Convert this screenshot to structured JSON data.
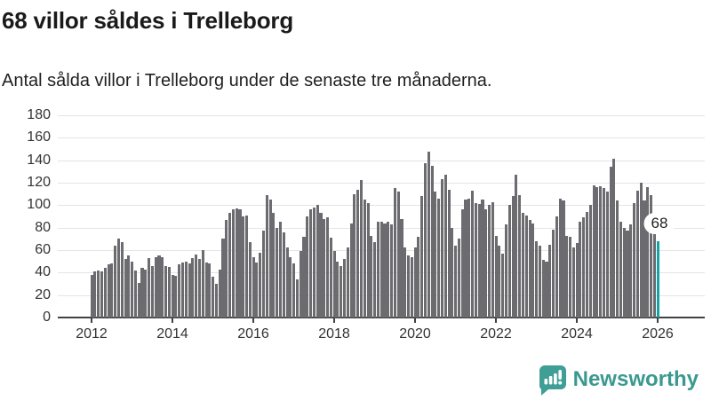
{
  "header": {
    "title": "68 villor såldes i Trelleborg",
    "subtitle": "Antal sålda villor i Trelleborg under de senaste tre månaderna."
  },
  "chart_data": {
    "type": "bar",
    "title": "68 villor såldes i Trelleborg",
    "subtitle": "Antal sålda villor i Trelleborg under de senaste tre månaderna.",
    "frequency": "monthly",
    "x_start": "2012-01",
    "x_end": "2026-01",
    "values": [
      38,
      41,
      42,
      41,
      44,
      47,
      48,
      64,
      70,
      67,
      52,
      55,
      50,
      42,
      31,
      44,
      43,
      53,
      46,
      54,
      55,
      54,
      46,
      45,
      38,
      37,
      47,
      49,
      50,
      48,
      53,
      56,
      52,
      60,
      49,
      48,
      36,
      30,
      43,
      70,
      87,
      93,
      96,
      97,
      96,
      90,
      91,
      67,
      54,
      49,
      58,
      77,
      109,
      105,
      93,
      80,
      85,
      76,
      62,
      54,
      48,
      34,
      59,
      72,
      90,
      96,
      98,
      100,
      93,
      88,
      89,
      71,
      59,
      50,
      46,
      52,
      62,
      84,
      110,
      114,
      122,
      105,
      102,
      73,
      67,
      85,
      85,
      84,
      85,
      83,
      115,
      112,
      88,
      62,
      55,
      54,
      62,
      72,
      108,
      137,
      148,
      135,
      112,
      106,
      123,
      127,
      114,
      80,
      64,
      70,
      96,
      105,
      106,
      113,
      102,
      101,
      105,
      96,
      100,
      103,
      73,
      64,
      57,
      83,
      100,
      108,
      127,
      109,
      93,
      91,
      87,
      84,
      68,
      64,
      51,
      50,
      65,
      78,
      90,
      106,
      104,
      73,
      72,
      62,
      66,
      85,
      89,
      94,
      100,
      118,
      116,
      117,
      115,
      112,
      134,
      141,
      104,
      85,
      80,
      77,
      83,
      102,
      113,
      120,
      104,
      116,
      109,
      88,
      68
    ],
    "highlight": {
      "index": 168,
      "value": 68,
      "label": "68"
    },
    "ylim": [
      0,
      180
    ],
    "yticks": [
      0,
      20,
      40,
      60,
      80,
      100,
      120,
      140,
      160,
      180
    ],
    "xticks": [
      2012,
      2014,
      2016,
      2018,
      2020,
      2022,
      2024,
      2026
    ],
    "grid": true,
    "legend": "none",
    "bar_color": "#6b6b70",
    "highlight_color": "#14a3a6"
  },
  "footer": {
    "brand": "Newsworthy",
    "logo_icon": "newsworthy-speech-bubble-chart-icon",
    "brand_color": "#3a998f",
    "icon_color": "#3f9e95"
  }
}
